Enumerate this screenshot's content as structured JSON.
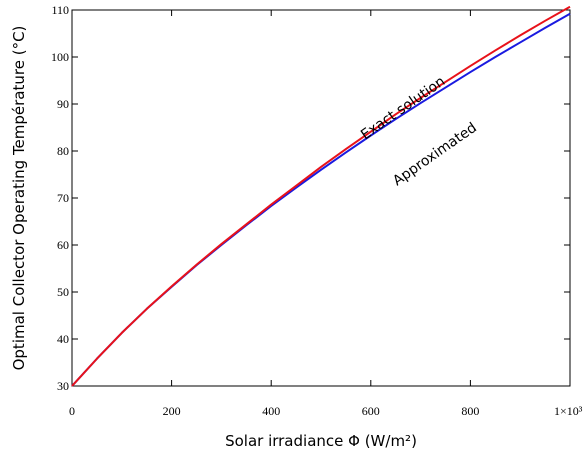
{
  "chart_data": {
    "type": "line",
    "title": "",
    "xlabel": "Solar irradiance  Φ (W/m²)",
    "ylabel": "Optimal Collector Operating Température (°C)",
    "xlim": [
      0,
      1000
    ],
    "ylim": [
      30,
      110
    ],
    "grid": false,
    "legend": "none",
    "x_ticks": [
      {
        "value": 0,
        "label": "0"
      },
      {
        "value": 200,
        "label": "200"
      },
      {
        "value": 400,
        "label": "400"
      },
      {
        "value": 600,
        "label": "600"
      },
      {
        "value": 800,
        "label": "800"
      },
      {
        "value": 1000,
        "label": "1×10³"
      }
    ],
    "y_ticks": [
      {
        "value": 30,
        "label": "30"
      },
      {
        "value": 40,
        "label": "40"
      },
      {
        "value": 50,
        "label": "50"
      },
      {
        "value": 60,
        "label": "60"
      },
      {
        "value": 70,
        "label": "70"
      },
      {
        "value": 80,
        "label": "80"
      },
      {
        "value": 90,
        "label": "90"
      },
      {
        "value": 100,
        "label": "100"
      },
      {
        "value": 110,
        "label": "110"
      }
    ],
    "x": [
      0,
      50,
      100,
      150,
      200,
      250,
      300,
      350,
      400,
      450,
      500,
      550,
      600,
      650,
      700,
      750,
      800,
      850,
      900,
      950,
      1000
    ],
    "series": [
      {
        "name": "Exact solution",
        "color": "#e8121a",
        "values": [
          30,
          35.8,
          41.3,
          46.4,
          51.2,
          55.8,
          60.2,
          64.4,
          68.6,
          72.6,
          76.6,
          80.4,
          84.1,
          87.8,
          91.3,
          94.7,
          98.1,
          101.4,
          104.6,
          107.7,
          110.7
        ]
      },
      {
        "name": "Approximated",
        "color": "#1a1ae0",
        "values": [
          30,
          35.8,
          41.3,
          46.4,
          51.1,
          55.7,
          60.0,
          64.2,
          68.3,
          72.2,
          76.0,
          79.7,
          83.3,
          86.8,
          90.2,
          93.5,
          96.8,
          100.0,
          103.1,
          106.2,
          109.2
        ]
      }
    ],
    "annotations": [
      {
        "text": "Exact solution",
        "series": "Exact solution"
      },
      {
        "text": "Approximated",
        "series": "Approximated"
      }
    ]
  }
}
